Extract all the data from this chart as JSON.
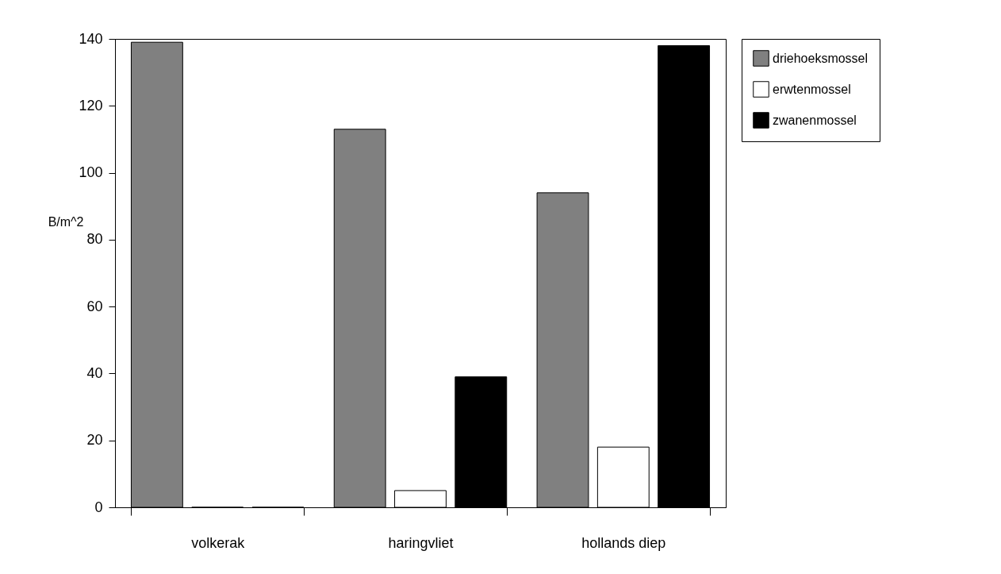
{
  "chart_data": {
    "type": "bar",
    "ylabel": "B/m^2",
    "categories": [
      "volkerak",
      "haringvliet",
      "hollands diep"
    ],
    "series": [
      {
        "name": "driehoeksmossel",
        "color": "#808080",
        "values": [
          139,
          113,
          94
        ]
      },
      {
        "name": "erwtenmossel",
        "color": "#ffffff",
        "values": [
          0,
          5,
          18
        ]
      },
      {
        "name": "zwanenmossel",
        "color": "#000000",
        "values": [
          0,
          39,
          138
        ]
      }
    ],
    "ylim": [
      0,
      140
    ],
    "yticks": [
      0,
      20,
      40,
      60,
      80,
      100,
      120,
      140
    ],
    "grid": false,
    "legend": "right"
  }
}
